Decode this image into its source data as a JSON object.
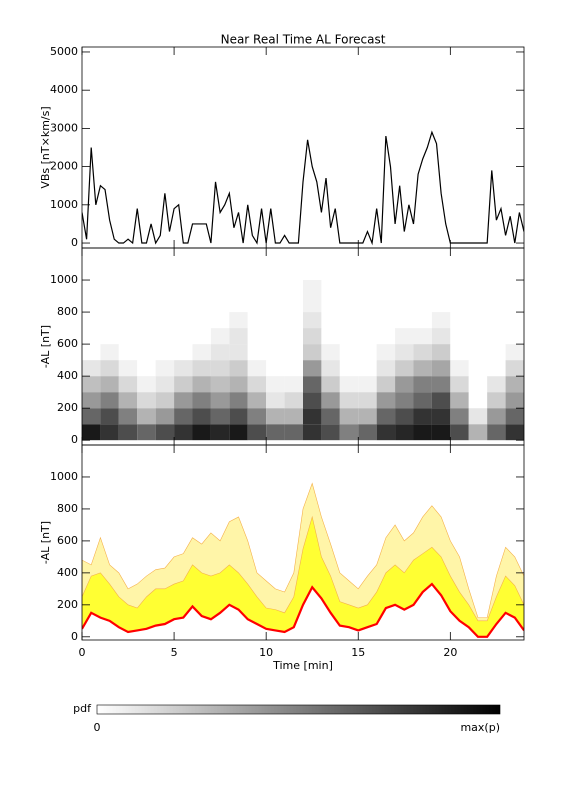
{
  "chart_data": [
    {
      "type": "line",
      "title": "Near Real Time AL Forecast",
      "ylabel": "VBs [nT×km/s]",
      "xlim": [
        0,
        24
      ],
      "xticks": [
        0,
        5,
        10,
        15,
        20
      ],
      "show_xtick_labels": false,
      "ylim": [
        -130,
        5130
      ],
      "yticks": [
        0,
        1000,
        2000,
        3000,
        4000,
        5000
      ],
      "x": [
        0,
        0.25,
        0.5,
        0.75,
        1,
        1.25,
        1.5,
        1.75,
        2,
        2.25,
        2.5,
        2.75,
        3,
        3.25,
        3.5,
        3.75,
        4,
        4.25,
        4.5,
        4.75,
        5,
        5.25,
        5.5,
        5.75,
        6,
        6.25,
        6.5,
        6.75,
        7,
        7.25,
        7.5,
        7.75,
        8,
        8.25,
        8.5,
        8.75,
        9,
        9.25,
        9.5,
        9.75,
        10,
        10.25,
        10.5,
        10.75,
        11,
        11.25,
        11.5,
        11.75,
        12,
        12.25,
        12.5,
        12.75,
        13,
        13.25,
        13.5,
        13.75,
        14,
        14.25,
        14.5,
        14.75,
        15,
        15.25,
        15.5,
        15.75,
        16,
        16.25,
        16.5,
        16.75,
        17,
        17.25,
        17.5,
        17.75,
        18,
        18.25,
        18.5,
        18.75,
        19,
        19.25,
        19.5,
        19.75,
        20,
        20.25,
        20.5,
        20.75,
        21,
        21.25,
        21.5,
        21.75,
        22,
        22.25,
        22.5,
        22.75,
        23,
        23.25,
        23.5,
        23.75,
        24
      ],
      "series": [
        {
          "color": "#000000",
          "values": [
            800,
            100,
            2500,
            1000,
            1500,
            1400,
            600,
            100,
            0,
            0,
            100,
            0,
            900,
            0,
            0,
            500,
            0,
            200,
            1300,
            300,
            900,
            1000,
            0,
            0,
            500,
            500,
            500,
            500,
            0,
            1600,
            800,
            1000,
            1300,
            400,
            800,
            0,
            1000,
            200,
            0,
            900,
            0,
            900,
            0,
            0,
            200,
            0,
            0,
            0,
            1600,
            2700,
            2000,
            1600,
            800,
            1700,
            400,
            900,
            0,
            0,
            0,
            0,
            0,
            0,
            300,
            0,
            900,
            0,
            2800,
            2000,
            500,
            1500,
            300,
            1000,
            500,
            1800,
            2200,
            2500,
            2900,
            2600,
            1300,
            500,
            0,
            0,
            0,
            0,
            0,
            0,
            0,
            0,
            0,
            1900,
            600,
            900,
            200,
            700,
            0,
            800,
            300
          ]
        }
      ]
    },
    {
      "type": "heatmap",
      "ylabel": "-AL [nT]",
      "xlim": [
        0,
        24
      ],
      "xticks": [
        0,
        5,
        10,
        15,
        20
      ],
      "show_xtick_labels": false,
      "ylim": [
        -30,
        1200
      ],
      "yticks": [
        0,
        200,
        400,
        600,
        800,
        1000
      ],
      "colormap": [
        "#ffffff",
        "#000000"
      ],
      "x_edges": [
        0,
        1,
        2,
        3,
        4,
        5,
        6,
        7,
        8,
        9,
        10,
        11,
        12,
        13,
        14,
        15,
        16,
        17,
        18,
        19,
        20,
        21,
        22,
        23,
        24
      ],
      "y_edges": [
        0,
        100,
        200,
        300,
        400,
        500,
        600,
        700,
        800,
        900,
        1000
      ],
      "values": [
        [
          0.9,
          0.6,
          0.4,
          0.25,
          0.1,
          0,
          0,
          0,
          0,
          0
        ],
        [
          0.8,
          0.7,
          0.5,
          0.3,
          0.15,
          0.05,
          0,
          0,
          0,
          0
        ],
        [
          0.7,
          0.5,
          0.3,
          0.15,
          0.05,
          0,
          0,
          0,
          0,
          0
        ],
        [
          0.6,
          0.3,
          0.15,
          0.05,
          0,
          0,
          0,
          0,
          0,
          0
        ],
        [
          0.7,
          0.4,
          0.2,
          0.1,
          0.05,
          0,
          0,
          0,
          0,
          0
        ],
        [
          0.8,
          0.6,
          0.4,
          0.2,
          0.1,
          0,
          0,
          0,
          0,
          0
        ],
        [
          0.9,
          0.7,
          0.5,
          0.3,
          0.15,
          0.05,
          0,
          0,
          0,
          0
        ],
        [
          0.85,
          0.6,
          0.4,
          0.25,
          0.15,
          0.1,
          0.05,
          0,
          0,
          0
        ],
        [
          0.9,
          0.7,
          0.5,
          0.3,
          0.2,
          0.1,
          0.1,
          0.05,
          0,
          0
        ],
        [
          0.7,
          0.5,
          0.3,
          0.15,
          0.05,
          0,
          0,
          0,
          0,
          0
        ],
        [
          0.6,
          0.3,
          0.1,
          0.05,
          0,
          0,
          0,
          0,
          0,
          0
        ],
        [
          0.6,
          0.3,
          0.15,
          0.05,
          0,
          0,
          0,
          0,
          0,
          0
        ],
        [
          0.8,
          0.8,
          0.7,
          0.6,
          0.4,
          0.2,
          0.15,
          0.1,
          0.05,
          0.05
        ],
        [
          0.7,
          0.6,
          0.4,
          0.2,
          0.1,
          0.05,
          0,
          0,
          0,
          0
        ],
        [
          0.5,
          0.3,
          0.15,
          0.05,
          0,
          0,
          0,
          0,
          0,
          0
        ],
        [
          0.6,
          0.3,
          0.15,
          0.05,
          0,
          0,
          0,
          0,
          0,
          0
        ],
        [
          0.8,
          0.6,
          0.4,
          0.2,
          0.1,
          0.05,
          0,
          0,
          0,
          0
        ],
        [
          0.85,
          0.7,
          0.5,
          0.4,
          0.2,
          0.1,
          0.05,
          0,
          0,
          0
        ],
        [
          0.9,
          0.8,
          0.6,
          0.5,
          0.3,
          0.15,
          0.05,
          0,
          0,
          0
        ],
        [
          0.9,
          0.8,
          0.7,
          0.5,
          0.35,
          0.2,
          0.1,
          0.05,
          0,
          0
        ],
        [
          0.7,
          0.5,
          0.3,
          0.15,
          0.05,
          0,
          0,
          0,
          0,
          0
        ],
        [
          0.3,
          0.1,
          0,
          0,
          0,
          0,
          0,
          0,
          0,
          0
        ],
        [
          0.6,
          0.4,
          0.2,
          0.1,
          0,
          0,
          0,
          0,
          0,
          0
        ],
        [
          0.8,
          0.6,
          0.4,
          0.3,
          0.15,
          0.05,
          0,
          0,
          0,
          0
        ]
      ]
    },
    {
      "type": "band",
      "ylabel": "-AL [nT]",
      "xlabel": "Time [min]",
      "xlim": [
        0,
        24
      ],
      "xticks": [
        0,
        5,
        10,
        15,
        20
      ],
      "show_xtick_labels": true,
      "ylim": [
        -20,
        1200
      ],
      "yticks": [
        0,
        200,
        400,
        600,
        800,
        1000
      ],
      "x": [
        0,
        0.5,
        1,
        1.5,
        2,
        2.5,
        3,
        3.5,
        4,
        4.5,
        5,
        5.5,
        6,
        6.5,
        7,
        7.5,
        8,
        8.5,
        9,
        9.5,
        10,
        10.5,
        11,
        11.5,
        12,
        12.5,
        13,
        13.5,
        14,
        14.5,
        15,
        15.5,
        16,
        16.5,
        17,
        17.5,
        18,
        18.5,
        19,
        19.5,
        20,
        20.5,
        21,
        21.5,
        22,
        22.5,
        23,
        23.5,
        24
      ],
      "series": [
        {
          "color": "#fff5a8",
          "values": [
            480,
            450,
            620,
            450,
            400,
            300,
            330,
            380,
            420,
            430,
            500,
            520,
            620,
            580,
            650,
            600,
            720,
            750,
            600,
            400,
            350,
            300,
            280,
            400,
            800,
            960,
            750,
            580,
            400,
            350,
            300,
            380,
            450,
            620,
            700,
            600,
            650,
            750,
            820,
            750,
            600,
            500,
            300,
            120,
            120,
            380,
            560,
            500,
            380
          ]
        },
        {
          "color": "#ffff33",
          "values": [
            250,
            380,
            400,
            330,
            250,
            200,
            180,
            250,
            300,
            300,
            330,
            350,
            450,
            400,
            380,
            400,
            450,
            400,
            330,
            250,
            180,
            170,
            150,
            250,
            550,
            750,
            500,
            380,
            220,
            200,
            180,
            200,
            280,
            400,
            450,
            400,
            480,
            520,
            560,
            500,
            380,
            280,
            200,
            100,
            100,
            250,
            380,
            320,
            200
          ]
        },
        {
          "color": "#ff0000",
          "values": [
            50,
            150,
            120,
            100,
            60,
            30,
            40,
            50,
            70,
            80,
            110,
            120,
            190,
            130,
            110,
            150,
            200,
            170,
            110,
            80,
            50,
            40,
            30,
            60,
            200,
            310,
            240,
            150,
            70,
            60,
            40,
            60,
            80,
            180,
            200,
            170,
            200,
            280,
            330,
            260,
            160,
            100,
            60,
            0,
            0,
            80,
            150,
            120,
            40
          ]
        }
      ]
    }
  ],
  "colorbar": {
    "label": "pdf",
    "min_label": "0",
    "max_label": "max(p)"
  }
}
